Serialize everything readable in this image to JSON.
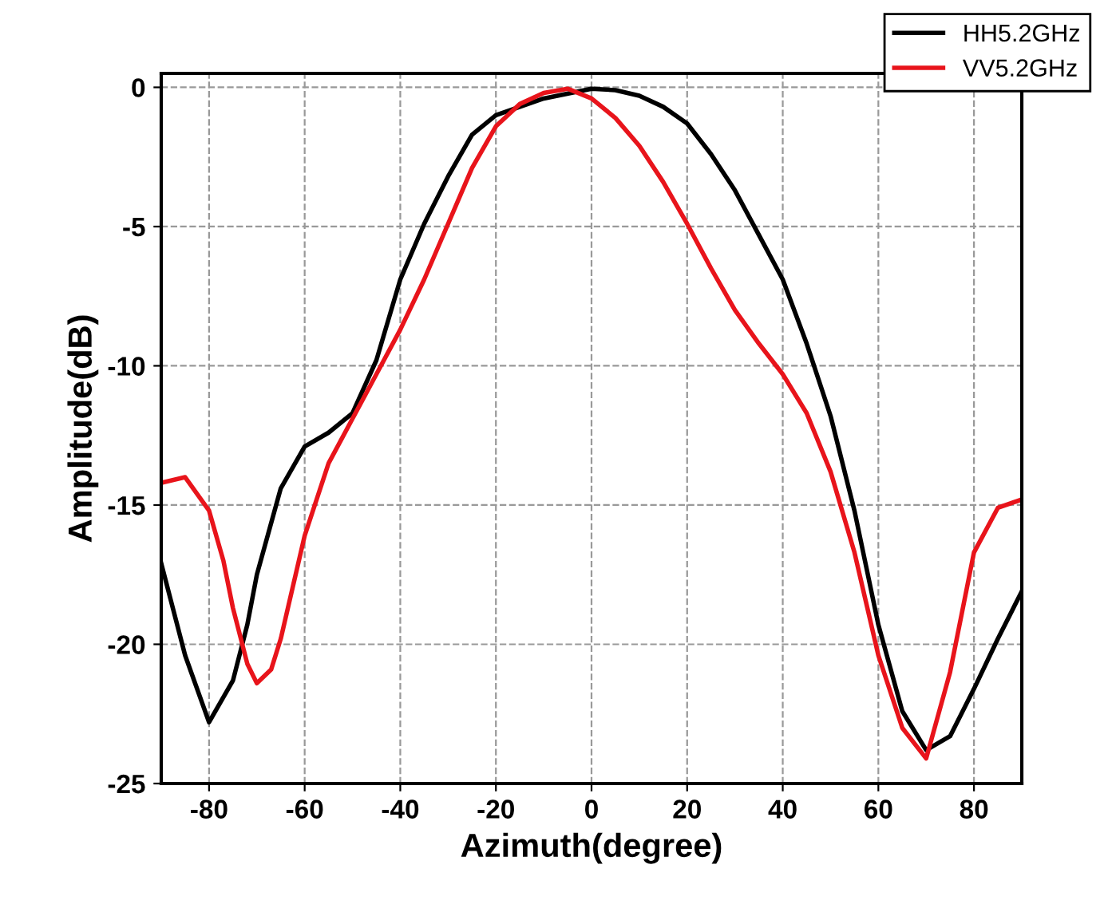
{
  "chart_data": {
    "type": "line",
    "xlabel": "Azimuth(degree)",
    "ylabel": "Amplitude(dB)",
    "xlim": [
      -90,
      90
    ],
    "ylim": [
      -25,
      0.5
    ],
    "xticks": [
      -80,
      -60,
      -40,
      -20,
      0,
      20,
      40,
      60,
      80
    ],
    "yticks": [
      -25,
      -20,
      -15,
      -10,
      -5,
      0
    ],
    "grid": true,
    "legend": "top right",
    "line_style": "solid",
    "marker": "none",
    "series": [
      {
        "name": "HH5.2GHz",
        "color": "#000000",
        "x": [
          -90,
          -85,
          -80,
          -75,
          -72,
          -70,
          -65,
          -60,
          -55,
          -50,
          -45,
          -40,
          -35,
          -30,
          -25,
          -20,
          -10,
          0,
          5,
          10,
          15,
          20,
          25,
          30,
          35,
          40,
          45,
          50,
          55,
          60,
          65,
          70,
          75,
          80,
          85,
          90
        ],
        "values": [
          -17.1,
          -20.4,
          -22.8,
          -21.3,
          -19.3,
          -17.5,
          -14.4,
          -12.9,
          -12.4,
          -11.7,
          -9.8,
          -6.9,
          -4.9,
          -3.2,
          -1.7,
          -1.0,
          -0.4,
          -0.05,
          -0.1,
          -0.3,
          -0.7,
          -1.3,
          -2.4,
          -3.7,
          -5.3,
          -6.9,
          -9.2,
          -11.8,
          -15.2,
          -19.3,
          -22.4,
          -23.8,
          -23.3,
          -21.6,
          -19.8,
          -18.1
        ]
      },
      {
        "name": "VV5.2GHz",
        "color": "#e8141b",
        "x": [
          -90,
          -85,
          -80,
          -77,
          -75,
          -72,
          -70,
          -67,
          -65,
          -60,
          -55,
          -50,
          -45,
          -40,
          -35,
          -30,
          -25,
          -20,
          -15,
          -10,
          -5,
          0,
          5,
          10,
          15,
          20,
          25,
          30,
          35,
          40,
          45,
          50,
          55,
          60,
          65,
          70,
          75,
          80,
          85,
          90
        ],
        "values": [
          -14.2,
          -14.0,
          -15.2,
          -17.0,
          -18.7,
          -20.7,
          -21.4,
          -20.9,
          -19.8,
          -16.1,
          -13.5,
          -11.9,
          -10.3,
          -8.7,
          -6.9,
          -4.9,
          -2.9,
          -1.4,
          -0.6,
          -0.2,
          -0.05,
          -0.4,
          -1.1,
          -2.1,
          -3.4,
          -4.9,
          -6.5,
          -8.0,
          -9.2,
          -10.3,
          -11.7,
          -13.8,
          -16.7,
          -20.4,
          -23.0,
          -24.1,
          -21.0,
          -16.7,
          -15.1,
          -14.8
        ]
      }
    ]
  }
}
